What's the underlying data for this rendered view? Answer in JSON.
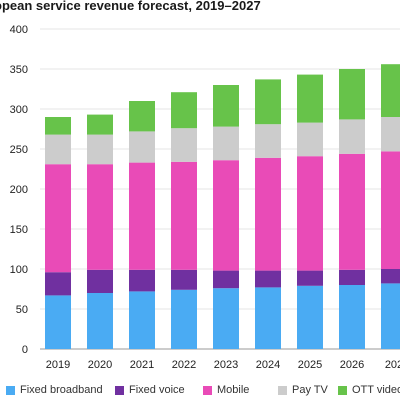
{
  "chart_data": {
    "type": "bar",
    "stacked": true,
    "title": "opean service revenue forecast, 2019–2027",
    "xlabel": "",
    "ylabel": "",
    "ylim": [
      0,
      400
    ],
    "yticks": [
      "0",
      "50",
      "100",
      "150",
      "200",
      "250",
      "300",
      "350",
      "400"
    ],
    "grid": true,
    "legend_position": "bottom",
    "categories": [
      "2019",
      "2020",
      "2021",
      "2022",
      "2023",
      "2024",
      "2025",
      "2026",
      "202"
    ],
    "series": [
      {
        "name": "Fixed broadband",
        "color": "#4aabf3",
        "values": [
          67,
          70,
          72,
          74,
          76,
          77,
          79,
          80,
          82
        ]
      },
      {
        "name": "Fixed voice",
        "color": "#7030a0",
        "values": [
          29,
          29,
          27,
          25,
          22,
          21,
          19,
          19,
          18
        ]
      },
      {
        "name": "Mobile",
        "color": "#e94bb7",
        "values": [
          135,
          132,
          134,
          135,
          138,
          141,
          143,
          145,
          147
        ]
      },
      {
        "name": "Pay TV",
        "color": "#cccccc",
        "values": [
          37,
          37,
          39,
          42,
          42,
          42,
          42,
          43,
          43
        ]
      },
      {
        "name": "OTT video",
        "color": "#67c34a",
        "values": [
          22,
          25,
          38,
          45,
          52,
          56,
          60,
          63,
          66
        ]
      }
    ]
  }
}
